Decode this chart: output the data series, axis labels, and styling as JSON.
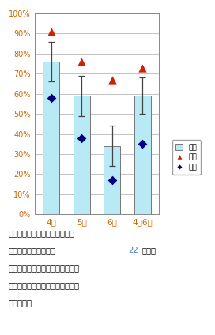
{
  "categories": [
    "4月",
    "5月",
    "6月",
    "4～6月"
  ],
  "bar_means": [
    0.76,
    0.59,
    0.34,
    0.59
  ],
  "bar_errors_up": [
    0.1,
    0.1,
    0.1,
    0.09
  ],
  "bar_errors_dn": [
    0.1,
    0.1,
    0.1,
    0.09
  ],
  "max_vals": [
    0.91,
    0.76,
    0.67,
    0.73
  ],
  "min_vals": [
    0.58,
    0.38,
    0.17,
    0.35
  ],
  "bar_color": "#b8eaf5",
  "bar_edge_color": "#777777",
  "max_color": "#cc2200",
  "min_color": "#000080",
  "error_color": "#444444",
  "ylim": [
    0,
    1.0
  ],
  "yticks": [
    0.0,
    0.1,
    0.2,
    0.3,
    0.4,
    0.5,
    0.6,
    0.7,
    0.8,
    0.9,
    1.0
  ],
  "ytick_labels": [
    "0%",
    "10%",
    "20%",
    "30%",
    "40%",
    "50%",
    "60%",
    "70%",
    "80%",
    "90%",
    "100%"
  ],
  "legend_labels": [
    "平均",
    "最大",
    "最小"
  ],
  "bg_color": "#ffffff",
  "tick_color": "#cc6600",
  "caption_22_color": "#4472c4"
}
